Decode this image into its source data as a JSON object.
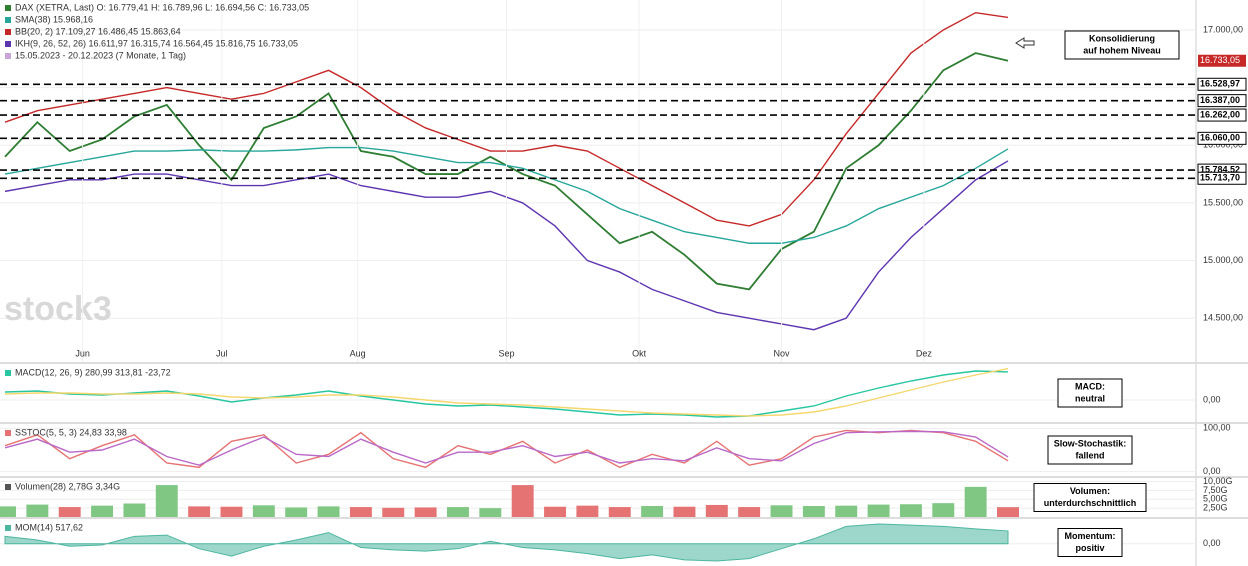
{
  "chart_data": [
    {
      "type": "line",
      "panel": "main",
      "legend": [
        "DAX (XETRA, Last)  O: 16.779,41  H: 16.789,96  L: 16.694,56  C: 16.733,05",
        "SMA(38)  15.968,16",
        "BB(20, 2)  17.109,27  16.486,45  15.863,64",
        "IKH(9, 26, 52, 26)  16.611,97  16.315,74  16.564,45  15.816,75  16.733,05",
        "15.05.2023 - 20.12.2023  (7 Monate, 1 Tag)"
      ],
      "watermark": "stock3",
      "x": [
        0,
        1,
        2,
        3,
        4,
        5,
        6,
        7,
        8,
        9,
        10,
        11,
        12,
        13,
        14,
        15,
        16,
        17,
        18,
        19,
        20,
        21,
        22,
        23,
        24,
        25,
        26,
        27,
        28,
        29,
        30,
        31
      ],
      "xlim": [
        0,
        31
      ],
      "xticks": [
        {
          "value": 2.4,
          "label": "Jun"
        },
        {
          "value": 6.7,
          "label": "Jul"
        },
        {
          "value": 10.9,
          "label": "Aug"
        },
        {
          "value": 15.5,
          "label": "Sep"
        },
        {
          "value": 19.6,
          "label": "Okt"
        },
        {
          "value": 24,
          "label": "Nov"
        },
        {
          "value": 28.4,
          "label": "Dez"
        }
      ],
      "ylim": [
        14120,
        17260
      ],
      "yticks": [
        {
          "value": 17000,
          "label": "17.000,00"
        },
        {
          "value": 16500,
          "label": "16.500,00"
        },
        {
          "value": 16000,
          "label": "16.000,00"
        },
        {
          "value": 15500,
          "label": "15.500,00"
        },
        {
          "value": 15000,
          "label": "15.000,00"
        },
        {
          "value": 14500,
          "label": "14.500,00"
        }
      ],
      "series": [
        {
          "name": "DAX (XETRA, Last)",
          "color": "#2e7d32",
          "values": [
            15900,
            16200,
            15950,
            16050,
            16250,
            16350,
            16000,
            15700,
            16150,
            16250,
            16450,
            15950,
            15900,
            15750,
            15750,
            15900,
            15750,
            15650,
            15400,
            15150,
            15250,
            15050,
            14800,
            14750,
            15100,
            15250,
            15800,
            16000,
            16300,
            16650,
            16800,
            16733
          ]
        },
        {
          "name": "SMA(38)",
          "color": "#26a69a",
          "values": [
            15750,
            15800,
            15850,
            15900,
            15950,
            15950,
            15960,
            15950,
            15950,
            15960,
            15980,
            15980,
            15950,
            15900,
            15850,
            15850,
            15800,
            15700,
            15600,
            15450,
            15350,
            15250,
            15200,
            15150,
            15150,
            15200,
            15300,
            15450,
            15550,
            15650,
            15800,
            15968
          ]
        },
        {
          "name": "BB(20, 2) upper",
          "color": "#c62828",
          "values": [
            16200,
            16300,
            16350,
            16400,
            16450,
            16500,
            16450,
            16400,
            16450,
            16550,
            16650,
            16500,
            16300,
            16150,
            16050,
            15950,
            15950,
            16000,
            15950,
            15800,
            15650,
            15500,
            15350,
            15300,
            15400,
            15700,
            16100,
            16450,
            16800,
            17000,
            17150,
            17109
          ]
        },
        {
          "name": "BB(20, 2) lower",
          "color": "#5e35b1",
          "values": [
            15600,
            15650,
            15700,
            15700,
            15750,
            15750,
            15700,
            15650,
            15650,
            15700,
            15750,
            15650,
            15600,
            15550,
            15550,
            15600,
            15500,
            15300,
            15000,
            14900,
            14750,
            14650,
            14550,
            14500,
            14450,
            14400,
            14500,
            14900,
            15200,
            15450,
            15700,
            15864
          ]
        }
      ],
      "levels": [
        {
          "value": 16528.97,
          "label": "16.528,97"
        },
        {
          "value": 16387,
          "label": "16.387,00"
        },
        {
          "value": 16262,
          "label": "16.262,00"
        },
        {
          "value": 16060,
          "label": "16.060,00"
        },
        {
          "value": 15784.52,
          "label": "15.784,52"
        },
        {
          "value": 15713.7,
          "label": "15.713,70"
        }
      ],
      "last": {
        "value": 16733.05,
        "label": "16.733,05"
      },
      "annotation": [
        "Konsolidierung",
        "auf hohem Niveau"
      ]
    },
    {
      "type": "line",
      "panel": "macd",
      "title": "MACD(12, 26, 9)  280,99  313,81  -23,72",
      "ylim": [
        -220,
        360
      ],
      "yticks": [
        {
          "value": 0,
          "label": "0,00"
        }
      ],
      "series": [
        {
          "name": "MACD",
          "color": "#26c6a0",
          "values": [
            80,
            90,
            60,
            50,
            70,
            90,
            40,
            -20,
            20,
            50,
            90,
            40,
            0,
            -40,
            -60,
            -50,
            -70,
            -90,
            -120,
            -150,
            -140,
            -150,
            -170,
            -160,
            -110,
            -60,
            40,
            120,
            190,
            250,
            290,
            281
          ]
        },
        {
          "name": "Signal",
          "color": "#f5d76e",
          "values": [
            60,
            70,
            70,
            60,
            60,
            70,
            60,
            30,
            20,
            30,
            50,
            50,
            30,
            0,
            -30,
            -40,
            -50,
            -70,
            -90,
            -110,
            -130,
            -140,
            -150,
            -160,
            -150,
            -120,
            -60,
            20,
            100,
            180,
            250,
            314
          ]
        }
      ],
      "annotation": [
        "MACD:",
        "neutral"
      ]
    },
    {
      "type": "line",
      "panel": "stoch",
      "title": "SSTOC(5, 5, 3)  24,83  33,98",
      "ylim": [
        -10,
        110
      ],
      "yticks": [
        {
          "value": 100,
          "label": "100,00"
        },
        {
          "value": 0,
          "label": "0,00"
        }
      ],
      "series": [
        {
          "name": "%K",
          "color": "#e57373",
          "values": [
            60,
            85,
            30,
            60,
            85,
            20,
            10,
            70,
            85,
            20,
            40,
            90,
            30,
            10,
            60,
            40,
            70,
            20,
            50,
            10,
            40,
            20,
            70,
            15,
            30,
            80,
            95,
            90,
            95,
            90,
            70,
            25
          ]
        },
        {
          "name": "%D",
          "color": "#ba68c8",
          "values": [
            55,
            75,
            45,
            50,
            75,
            35,
            15,
            50,
            80,
            40,
            35,
            75,
            45,
            20,
            45,
            45,
            60,
            35,
            45,
            20,
            30,
            25,
            55,
            30,
            25,
            65,
            90,
            92,
            93,
            92,
            80,
            34
          ]
        }
      ],
      "annotation": [
        "Slow-Stochastik:",
        "fallend"
      ]
    },
    {
      "type": "bar",
      "panel": "volume",
      "title": "Volumen(28)  2,78G  3,34G",
      "ylim": [
        0,
        11
      ],
      "yticks": [
        {
          "value": 10,
          "label": "10,00G"
        },
        {
          "value": 7.5,
          "label": "7,50G"
        },
        {
          "value": 5,
          "label": "5,00G"
        },
        {
          "value": 2.5,
          "label": "2,50G"
        }
      ],
      "series": [
        {
          "name": "Volumen",
          "values": [
            3,
            3.5,
            2.8,
            3.2,
            3.8,
            9,
            3,
            2.9,
            3.3,
            2.7,
            3,
            2.8,
            2.6,
            2.7,
            2.8,
            2.5,
            9,
            2.9,
            3.2,
            2.8,
            3.1,
            2.9,
            3.4,
            2.8,
            3.3,
            3.1,
            3.2,
            3.5,
            3.6,
            3.9,
            8.5,
            2.78
          ]
        }
      ],
      "annotation": [
        "Volumen:",
        "unterdurchschnittlich"
      ]
    },
    {
      "type": "area",
      "panel": "mom",
      "title": "MOM(14)  517,62",
      "ylim": [
        -900,
        1000
      ],
      "yticks": [
        {
          "value": 0,
          "label": "0,00"
        }
      ],
      "series": [
        {
          "name": "MOM(14)",
          "color": "#4db6a0",
          "values": [
            300,
            150,
            -100,
            -50,
            300,
            350,
            -200,
            -500,
            -100,
            150,
            450,
            -150,
            -250,
            -300,
            -200,
            100,
            -150,
            -250,
            -400,
            -600,
            -450,
            -650,
            -700,
            -600,
            -200,
            200,
            700,
            800,
            750,
            700,
            600,
            518
          ]
        }
      ],
      "annotation": [
        "Momentum:",
        "positiv"
      ]
    }
  ]
}
